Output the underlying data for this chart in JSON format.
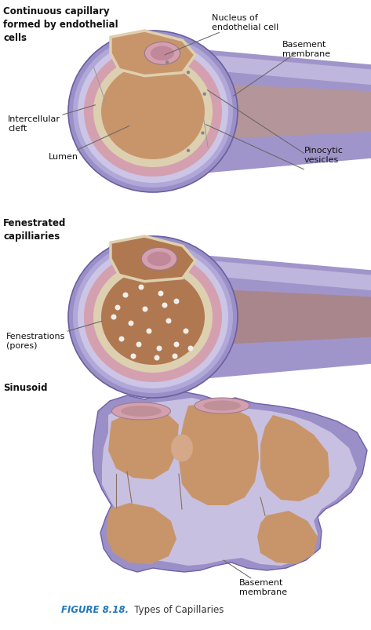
{
  "bg_color": "#ffffff",
  "figure_label": "FIGURE 8.18.",
  "figure_label_color": "#2277bb",
  "figure_suffix": "   Types of Capillaries",
  "figure_suffix_color": "#333333",
  "label_color": "#111111",
  "arrow_color": "#666666",
  "purple_outer": "#9b8fc8",
  "purple_mid": "#b0a8d8",
  "purple_light": "#ccc5e5",
  "purple_tube": "#a89dcc",
  "pink_cell": "#d4a0b0",
  "pink_dark": "#c08898",
  "tan_lumen1": "#c8956a",
  "tan_lumen2": "#b07850",
  "cream_wall": "#ddd0b0",
  "white_dot": "#e8e5dc",
  "brown_sinusoid": "#a06040",
  "peach_open": "#d4a888",
  "labels": {
    "cont_title": "Continuous capillary\nformed by endothelial\ncells",
    "nucleus": "Nucleus of\nendothelial cell",
    "basement1": "Basement\nmembrane",
    "intercellular": "Intercellular\ncleft",
    "lumen": "Lumen",
    "pinocytic": "Pinocytic\nvesicles",
    "fen_title": "Fenestrated\ncapilliaries",
    "fenestrations": "Fenestrations\n(pores)",
    "sinusoid_title": "Sinusoid",
    "basement2": "Basement\nmembrane"
  }
}
